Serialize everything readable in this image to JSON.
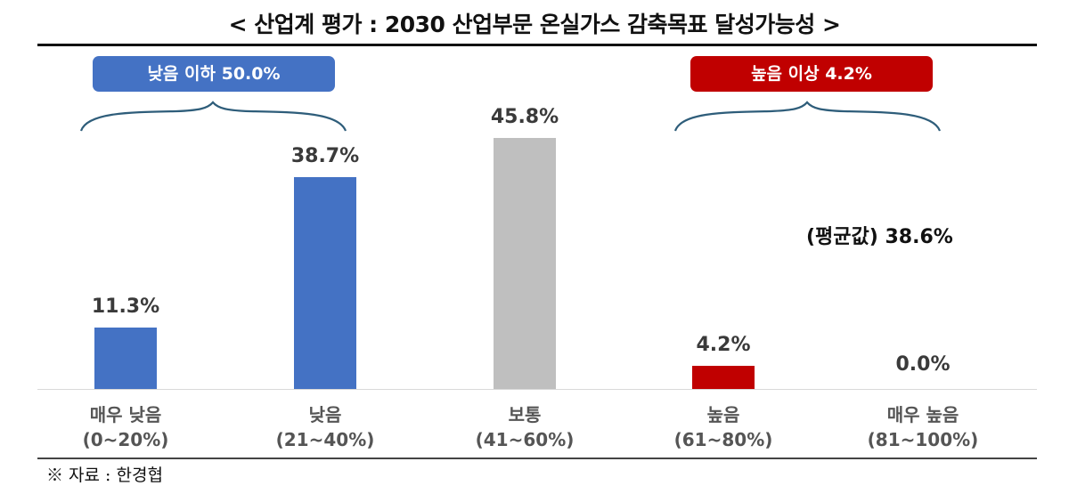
{
  "title": "< 산업계 평가 : 2030 산업부문 온실가스 감축목표 달성가능성 >",
  "groups": [
    {
      "label": "낮음 이하 50.0%",
      "color": "#4472c4"
    },
    {
      "label": "높음 이상 4.2%",
      "color": "#c00000"
    }
  ],
  "average": "(평균값) 38.6%",
  "source": "※ 자료 : 한경협",
  "chart_data": {
    "type": "bar",
    "title": "< 산업계 평가 : 2030 산업부문 온실가스 감축목표 달성가능성 >",
    "categories": [
      "매우 낮음 (0~20%)",
      "낮음 (21~40%)",
      "보통 (41~60%)",
      "높음 (61~80%)",
      "매우 높음 (81~100%)"
    ],
    "category_lines": [
      [
        "매우 낮음",
        "(0~20%)"
      ],
      [
        "낮음",
        "(21~40%)"
      ],
      [
        "보통",
        "(41~60%)"
      ],
      [
        "높음",
        "(61~80%)"
      ],
      [
        "매우 높음",
        "(81~100%)"
      ]
    ],
    "values": [
      11.3,
      38.7,
      45.8,
      4.2,
      0.0
    ],
    "value_labels": [
      "11.3%",
      "38.7%",
      "45.8%",
      "4.2%",
      "0.0%"
    ],
    "bar_colors": [
      "#4472c4",
      "#4472c4",
      "#bfbfbf",
      "#c00000",
      "#c00000"
    ],
    "annotations": [
      "낮음 이하 50.0%",
      "높음 이상 4.2%",
      "(평균값) 38.6%"
    ],
    "xlabel": "",
    "ylabel": "",
    "ylim": [
      0,
      50
    ],
    "grid": false,
    "legend": null
  }
}
